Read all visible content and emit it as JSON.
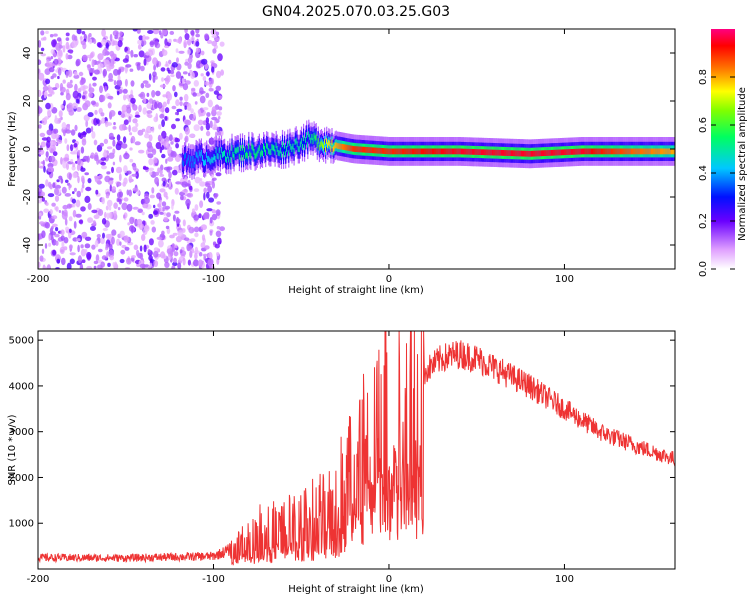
{
  "title": "GN04.2025.070.03.25.G03",
  "chart_data": [
    {
      "type": "heatmap",
      "xlabel": "Height of straight line (km)",
      "ylabel": "Frequency (Hz)",
      "xlim": [
        -200,
        163
      ],
      "ylim": [
        -50,
        50
      ],
      "x_ticks": [
        "-200",
        "-100",
        "0",
        "100"
      ],
      "y_ticks": [
        "-40",
        "-20",
        "0",
        "20",
        "40"
      ],
      "colorbar": {
        "label": "Normalized spectral amplitude",
        "range": [
          0,
          1
        ],
        "ticks": [
          "0.0",
          "0.2",
          "0.4",
          "0.6",
          "0.8"
        ]
      },
      "noise_region_x": [
        -200,
        -95
      ],
      "signal_track": [
        {
          "x": -118,
          "y": -5,
          "amp": 0.35
        },
        {
          "x": -100,
          "y": -3,
          "amp": 0.45
        },
        {
          "x": -80,
          "y": -1,
          "amp": 0.55
        },
        {
          "x": -60,
          "y": 0,
          "amp": 0.5
        },
        {
          "x": -45,
          "y": 4,
          "amp": 0.5
        },
        {
          "x": -35,
          "y": 2,
          "amp": 0.75
        },
        {
          "x": -20,
          "y": 0,
          "amp": 0.9
        },
        {
          "x": 0,
          "y": -1,
          "amp": 0.9
        },
        {
          "x": 40,
          "y": -1,
          "amp": 0.95
        },
        {
          "x": 80,
          "y": -2,
          "amp": 0.95
        },
        {
          "x": 110,
          "y": -1,
          "amp": 0.95
        },
        {
          "x": 140,
          "y": -1,
          "amp": 0.85
        },
        {
          "x": 163,
          "y": -1,
          "amp": 0.8
        }
      ]
    },
    {
      "type": "line",
      "xlabel": "Height of straight line (km)",
      "ylabel": "SNR (10 * v/v)",
      "xlim": [
        -200,
        163
      ],
      "ylim": [
        0,
        5200
      ],
      "x_ticks": [
        "-200",
        "-100",
        "0",
        "100"
      ],
      "y_ticks": [
        "1000",
        "2000",
        "3000",
        "4000",
        "5000"
      ],
      "color": "#ee3333",
      "series": [
        {
          "x": [
            -200,
            -150,
            -100,
            -85,
            -75,
            -60,
            -45,
            -30,
            -20,
            -10,
            0,
            10,
            20,
            30,
            40,
            50,
            60,
            80,
            100,
            120,
            140,
            163
          ],
          "y": [
            250,
            240,
            280,
            500,
            800,
            900,
            1100,
            1500,
            2500,
            3100,
            3500,
            3900,
            4300,
            4600,
            4700,
            4600,
            4400,
            4000,
            3500,
            3000,
            2700,
            2400
          ]
        }
      ]
    }
  ]
}
